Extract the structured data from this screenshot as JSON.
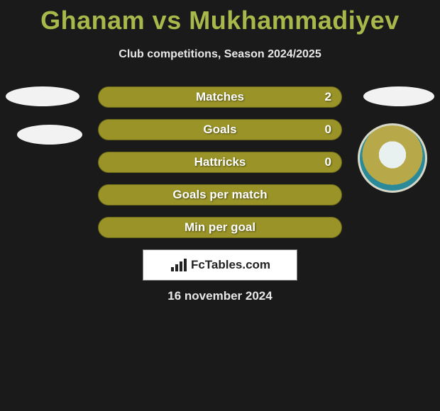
{
  "title": "Ghanam vs Mukhammadiyev",
  "subtitle": "Club competitions, Season 2024/2025",
  "bars": [
    {
      "label": "Matches",
      "value": "2"
    },
    {
      "label": "Goals",
      "value": "0"
    },
    {
      "label": "Hattricks",
      "value": "0"
    },
    {
      "label": "Goals per match",
      "value": ""
    },
    {
      "label": "Min per goal",
      "value": ""
    }
  ],
  "brand": "FcTables.com",
  "date": "16 november 2024",
  "colors": {
    "bar_fill": "#9a9428",
    "bar_border": "#6a6618",
    "title_color": "#a8b84a",
    "background": "#1a1a1a"
  }
}
